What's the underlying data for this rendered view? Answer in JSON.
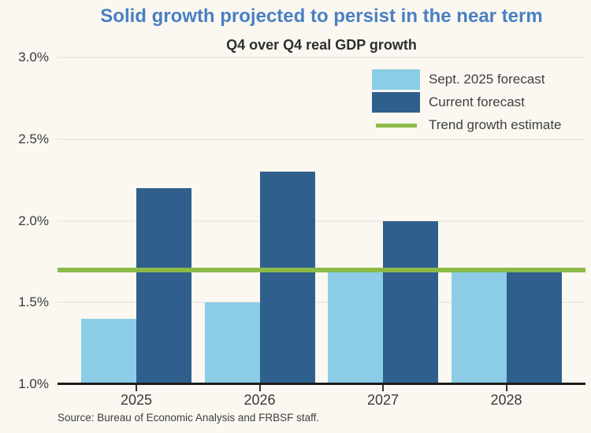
{
  "chart_data": {
    "type": "bar",
    "title": "Solid growth projected to persist in the near term",
    "subtitle": "Q4 over Q4 real GDP growth",
    "categories": [
      "2025",
      "2026",
      "2027",
      "2028"
    ],
    "series": [
      {
        "name": "Sept. 2025 forecast",
        "color": "#8BCDE6",
        "values": [
          1.4,
          1.5,
          1.7,
          1.7
        ]
      },
      {
        "name": "Current forecast",
        "color": "#2F5F8D",
        "values": [
          2.2,
          2.3,
          2.0,
          1.7
        ]
      }
    ],
    "trend_line": {
      "name": "Trend growth estimate",
      "color": "#8CBA48",
      "value": 1.7
    },
    "ylim": [
      1.0,
      3.0
    ],
    "yticks": [
      1.0,
      1.5,
      2.0,
      2.5,
      3.0
    ],
    "ytick_labels": [
      "1.0%",
      "1.5%",
      "2.0%",
      "2.5%",
      "3.0%"
    ],
    "grid": true,
    "legend_position": "top-right"
  },
  "source": "Source: Bureau of Economic Analysis and FRBSF staff.",
  "colors": {
    "background": "#FAF8F1",
    "title": "#4A80C3",
    "light_blue": "#8BCDE6",
    "dark_blue": "#2F5F8D",
    "green": "#8CBA48",
    "axis": "#1B1B1B",
    "gridline": "#EDEBE4",
    "text": "#3A3A3A"
  }
}
